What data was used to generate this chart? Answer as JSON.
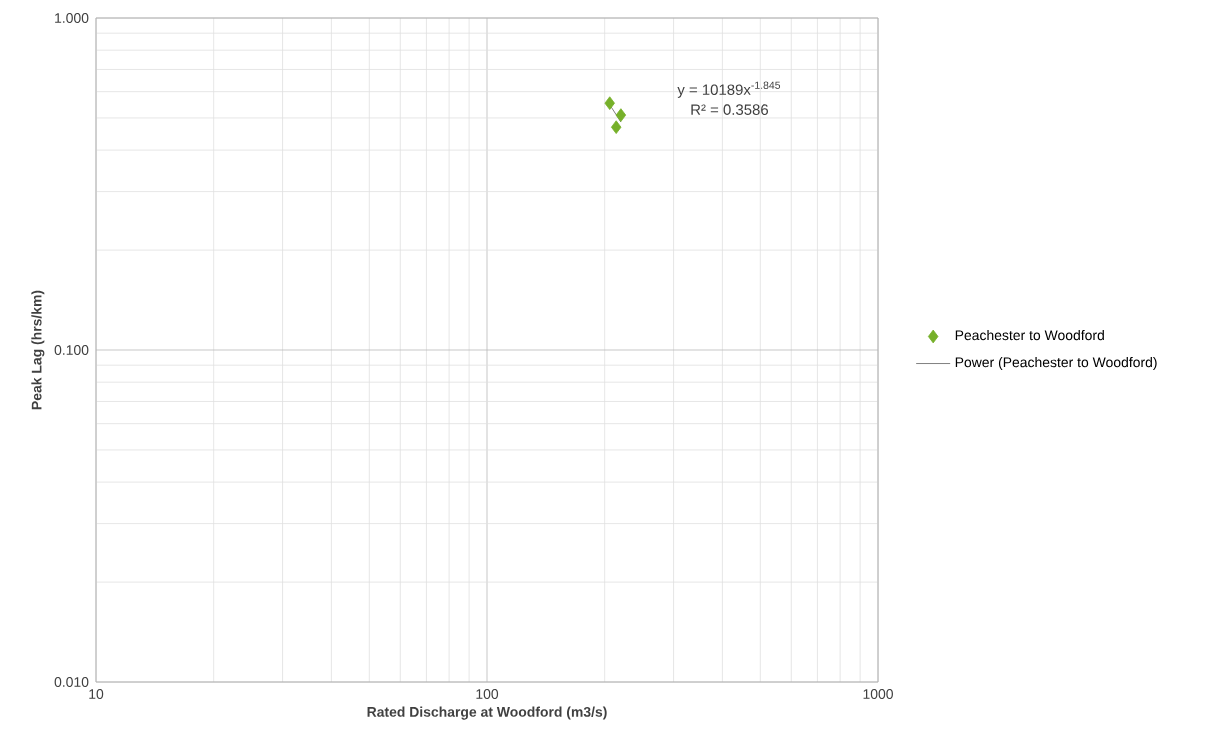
{
  "chart_data": {
    "type": "scatter",
    "xlabel": "Rated Discharge at Woodford (m3/s)",
    "ylabel": "Peak Lag (hrs/km)",
    "log": "xy",
    "grid": true,
    "legend": "right",
    "xlim": [
      10,
      1000
    ],
    "xticks": [
      10,
      100,
      1000
    ],
    "ylim": [
      0.01,
      1
    ],
    "yticks": [
      {
        "value": 0.01,
        "label": "0.010"
      },
      {
        "value": 0.1,
        "label": "0.100"
      },
      {
        "value": 1,
        "label": "1.000"
      }
    ],
    "series": [
      {
        "name": "Peachester to Woodford",
        "marker": "diamond",
        "color": "#76b02a",
        "x": [
          206,
          220,
          214
        ],
        "values": [
          0.554,
          0.51,
          0.469
        ]
      },
      {
        "name": "Power (Peachester to Woodford)",
        "type": "line",
        "marker": "none",
        "color": "#808080",
        "x": [
          206,
          220
        ],
        "values": [
          0.548,
          0.486
        ]
      }
    ],
    "annotations": [
      "y = 10189x$^{-1.845}$",
      "R² = 0.3586"
    ]
  }
}
